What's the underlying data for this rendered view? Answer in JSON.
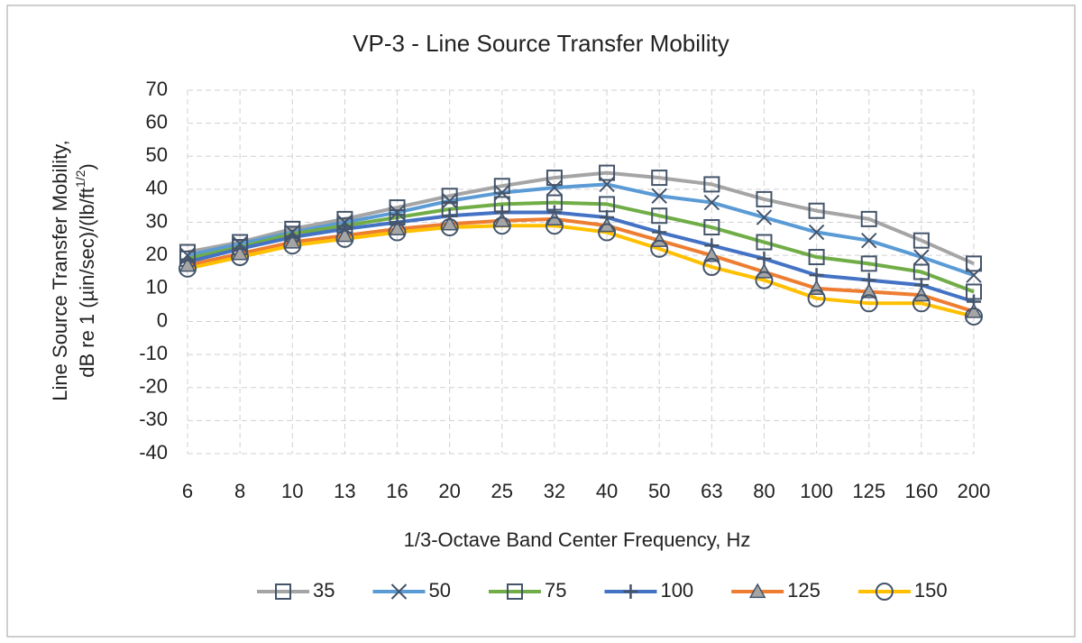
{
  "chart_data": {
    "type": "line",
    "title": "VP-3 - Line Source Transfer Mobility",
    "ylabel": [
      "Line Source Transfer Mobility,",
      "dB re 1 (µin/sec)/(lb/ft",
      "1/2",
      ")"
    ],
    "xlabel": "1/3-Octave Band Center Frequency, Hz",
    "categories": [
      "6",
      "8",
      "10",
      "13",
      "16",
      "20",
      "25",
      "32",
      "40",
      "50",
      "63",
      "80",
      "100",
      "125",
      "160",
      "200"
    ],
    "ylim": [
      -40,
      70
    ],
    "yticks": [
      -40,
      -30,
      -20,
      -10,
      0,
      10,
      20,
      30,
      40,
      50,
      60,
      70
    ],
    "grid": true,
    "legend": "bottom",
    "series": [
      {
        "name": "35",
        "color": "#a5a5a5",
        "marker": "square",
        "values": [
          21,
          24,
          28,
          31,
          34.5,
          38,
          41,
          43.5,
          45,
          43.5,
          41.5,
          37,
          33.5,
          31,
          24.5,
          17.5
        ]
      },
      {
        "name": "50",
        "color": "#5b9bd5",
        "marker": "x",
        "values": [
          20,
          23.5,
          27,
          30,
          33,
          36.5,
          39,
          40.5,
          41.5,
          38,
          36,
          31.5,
          27,
          24.5,
          19.5,
          14
        ]
      },
      {
        "name": "75",
        "color": "#70ad47",
        "marker": "square",
        "values": [
          19,
          22.5,
          26.5,
          29,
          31.5,
          34,
          35.5,
          36,
          35.5,
          32,
          28.5,
          24,
          19.5,
          17.5,
          15,
          9
        ]
      },
      {
        "name": "100",
        "color": "#4472c4",
        "marker": "plus",
        "values": [
          18,
          22,
          25.5,
          28,
          30,
          32,
          33,
          33,
          31.5,
          27,
          23,
          19,
          14,
          12.5,
          11,
          6
        ]
      },
      {
        "name": "125",
        "color": "#ed7d31",
        "marker": "triangle",
        "values": [
          17,
          20.5,
          24,
          26,
          28,
          29.5,
          30.5,
          31,
          29,
          24.5,
          20,
          15,
          10,
          9,
          8,
          3
        ]
      },
      {
        "name": "150",
        "color": "#ffc000",
        "marker": "circle",
        "values": [
          16,
          19.5,
          23,
          25,
          27,
          28.5,
          29,
          29,
          27,
          22,
          16.5,
          12.5,
          7,
          5.5,
          5.5,
          1.5
        ]
      }
    ]
  }
}
